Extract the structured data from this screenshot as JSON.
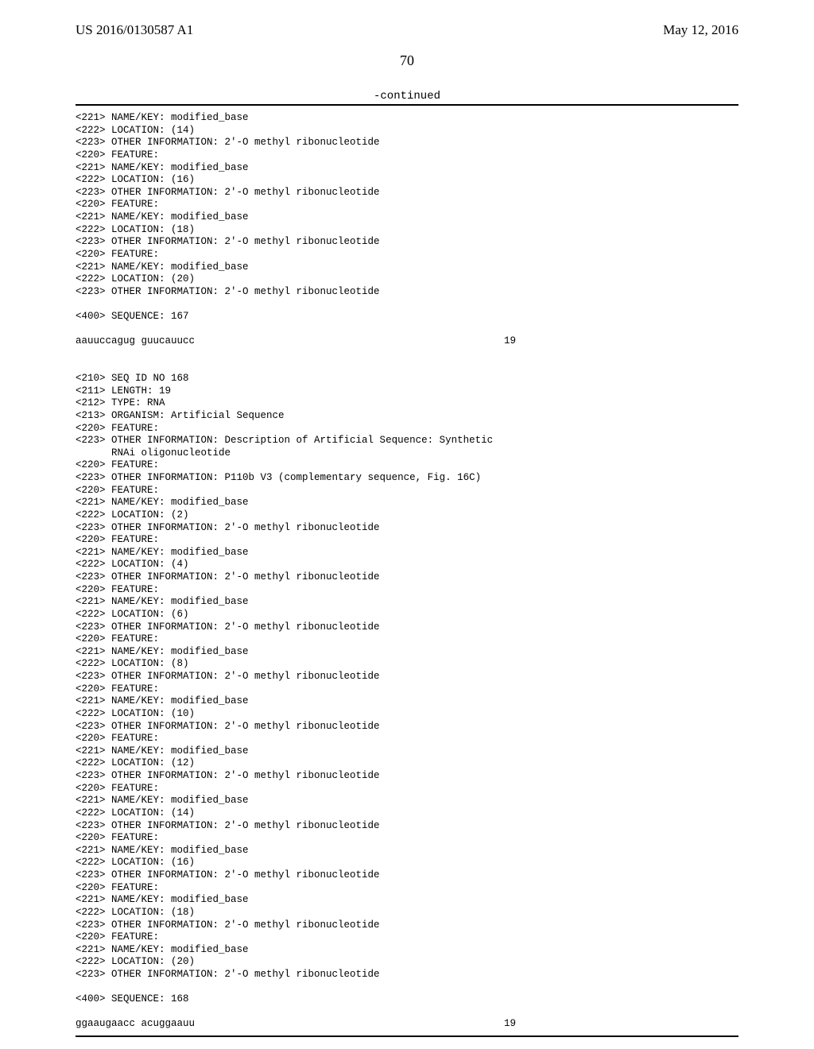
{
  "header": {
    "left": "US 2016/0130587 A1",
    "right": "May 12, 2016"
  },
  "page_number": "70",
  "continued_label": "-continued",
  "block1": {
    "lines": [
      "<221> NAME/KEY: modified_base",
      "<222> LOCATION: (14)",
      "<223> OTHER INFORMATION: 2'-O methyl ribonucleotide",
      "<220> FEATURE:",
      "<221> NAME/KEY: modified_base",
      "<222> LOCATION: (16)",
      "<223> OTHER INFORMATION: 2'-O methyl ribonucleotide",
      "<220> FEATURE:",
      "<221> NAME/KEY: modified_base",
      "<222> LOCATION: (18)",
      "<223> OTHER INFORMATION: 2'-O methyl ribonucleotide",
      "<220> FEATURE:",
      "<221> NAME/KEY: modified_base",
      "<222> LOCATION: (20)",
      "<223> OTHER INFORMATION: 2'-O methyl ribonucleotide"
    ],
    "seq_label": "<400> SEQUENCE: 167",
    "seq_text": "aauuccagug guucauucc",
    "seq_len": "19"
  },
  "block2": {
    "lines": [
      "<210> SEQ ID NO 168",
      "<211> LENGTH: 19",
      "<212> TYPE: RNA",
      "<213> ORGANISM: Artificial Sequence",
      "<220> FEATURE:",
      "<223> OTHER INFORMATION: Description of Artificial Sequence: Synthetic",
      "      RNAi oligonucleotide",
      "<220> FEATURE:",
      "<223> OTHER INFORMATION: P110b V3 (complementary sequence, Fig. 16C)",
      "<220> FEATURE:",
      "<221> NAME/KEY: modified_base",
      "<222> LOCATION: (2)",
      "<223> OTHER INFORMATION: 2'-O methyl ribonucleotide",
      "<220> FEATURE:",
      "<221> NAME/KEY: modified_base",
      "<222> LOCATION: (4)",
      "<223> OTHER INFORMATION: 2'-O methyl ribonucleotide",
      "<220> FEATURE:",
      "<221> NAME/KEY: modified_base",
      "<222> LOCATION: (6)",
      "<223> OTHER INFORMATION: 2'-O methyl ribonucleotide",
      "<220> FEATURE:",
      "<221> NAME/KEY: modified_base",
      "<222> LOCATION: (8)",
      "<223> OTHER INFORMATION: 2'-O methyl ribonucleotide",
      "<220> FEATURE:",
      "<221> NAME/KEY: modified_base",
      "<222> LOCATION: (10)",
      "<223> OTHER INFORMATION: 2'-O methyl ribonucleotide",
      "<220> FEATURE:",
      "<221> NAME/KEY: modified_base",
      "<222> LOCATION: (12)",
      "<223> OTHER INFORMATION: 2'-O methyl ribonucleotide",
      "<220> FEATURE:",
      "<221> NAME/KEY: modified_base",
      "<222> LOCATION: (14)",
      "<223> OTHER INFORMATION: 2'-O methyl ribonucleotide",
      "<220> FEATURE:",
      "<221> NAME/KEY: modified_base",
      "<222> LOCATION: (16)",
      "<223> OTHER INFORMATION: 2'-O methyl ribonucleotide",
      "<220> FEATURE:",
      "<221> NAME/KEY: modified_base",
      "<222> LOCATION: (18)",
      "<223> OTHER INFORMATION: 2'-O methyl ribonucleotide",
      "<220> FEATURE:",
      "<221> NAME/KEY: modified_base",
      "<222> LOCATION: (20)",
      "<223> OTHER INFORMATION: 2'-O methyl ribonucleotide"
    ],
    "seq_label": "<400> SEQUENCE: 168",
    "seq_text": "ggaaugaacc acuggaauu",
    "seq_len": "19"
  }
}
